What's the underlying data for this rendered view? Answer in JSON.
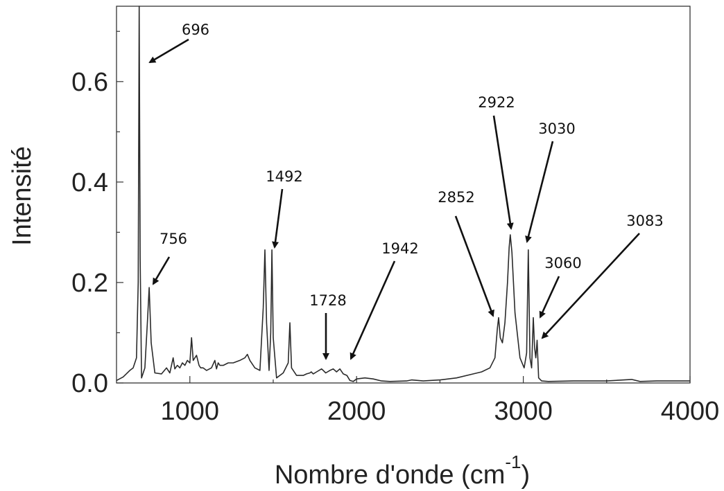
{
  "chart_data": {
    "type": "line",
    "title": "",
    "xlabel": "Nombre d'onde (cm",
    "xlabel_superscript": "-1",
    "xlabel_suffix": ")",
    "ylabel": "Intensité",
    "xlim": [
      560,
      4000
    ],
    "ylim": [
      0,
      0.75
    ],
    "x_ticks": [
      1000,
      2000,
      3000,
      4000
    ],
    "x_tick_labels": [
      "1000",
      "2000",
      "3000",
      "4000"
    ],
    "y_ticks": [
      0.0,
      0.2,
      0.4,
      0.6
    ],
    "y_tick_labels": [
      "0.0",
      "0.2",
      "0.4",
      "0.6"
    ],
    "grid": false,
    "line_color": "#2a2a2a",
    "series": [
      {
        "x": [
          560,
          600,
          640,
          660,
          680,
          690,
          696,
          702,
          710,
          730,
          745,
          756,
          768,
          790,
          830,
          860,
          880,
          900,
          910,
          925,
          940,
          955,
          970,
          985,
          1000,
          1010,
          1020,
          1030,
          1040,
          1055,
          1065,
          1080,
          1100,
          1130,
          1150,
          1160,
          1170,
          1180,
          1200,
          1230,
          1260,
          1300,
          1330,
          1345,
          1360,
          1390,
          1420,
          1440,
          1450,
          1460,
          1475,
          1485,
          1492,
          1500,
          1520,
          1560,
          1590,
          1600,
          1610,
          1640,
          1680,
          1700,
          1720,
          1728,
          1740,
          1760,
          1790,
          1800,
          1815,
          1840,
          1860,
          1880,
          1900,
          1920,
          1942,
          1960,
          1980,
          2000,
          2050,
          2100,
          2150,
          2200,
          2300,
          2330,
          2400,
          2500,
          2600,
          2700,
          2750,
          2800,
          2830,
          2845,
          2852,
          2862,
          2875,
          2890,
          2905,
          2915,
          2922,
          2932,
          2950,
          2980,
          3005,
          3020,
          3030,
          3040,
          3050,
          3060,
          3068,
          3075,
          3083,
          3092,
          3110,
          3150,
          3300,
          3500,
          3650,
          3700,
          3800,
          4000
        ],
        "values": [
          0.005,
          0.012,
          0.025,
          0.03,
          0.05,
          0.2,
          0.75,
          0.25,
          0.01,
          0.03,
          0.12,
          0.19,
          0.08,
          0.02,
          0.018,
          0.03,
          0.02,
          0.05,
          0.028,
          0.035,
          0.03,
          0.04,
          0.035,
          0.045,
          0.04,
          0.09,
          0.045,
          0.05,
          0.055,
          0.035,
          0.03,
          0.03,
          0.025,
          0.03,
          0.045,
          0.028,
          0.04,
          0.035,
          0.035,
          0.04,
          0.04,
          0.045,
          0.05,
          0.057,
          0.045,
          0.03,
          0.025,
          0.15,
          0.265,
          0.12,
          0.025,
          0.1,
          0.265,
          0.09,
          0.01,
          0.02,
          0.04,
          0.12,
          0.03,
          0.015,
          0.015,
          0.018,
          0.02,
          0.022,
          0.018,
          0.022,
          0.028,
          0.025,
          0.02,
          0.025,
          0.028,
          0.022,
          0.028,
          0.018,
          0.015,
          0.005,
          0.003,
          0.008,
          0.01,
          0.008,
          0.004,
          0.003,
          0.004,
          0.006,
          0.004,
          0.006,
          0.01,
          0.018,
          0.022,
          0.03,
          0.05,
          0.11,
          0.13,
          0.09,
          0.08,
          0.12,
          0.2,
          0.27,
          0.295,
          0.26,
          0.14,
          0.05,
          0.03,
          0.06,
          0.265,
          0.05,
          0.03,
          0.13,
          0.07,
          0.05,
          0.085,
          0.01,
          0.004,
          0.003,
          0.004,
          0.004,
          0.007,
          0.003,
          0.004,
          0.004
        ]
      }
    ],
    "annotations": [
      {
        "label": "696",
        "x": 696
      },
      {
        "label": "756",
        "x": 756
      },
      {
        "label": "1492",
        "x": 1492
      },
      {
        "label": "1728",
        "x": 1728
      },
      {
        "label": "1942",
        "x": 1942
      },
      {
        "label": "2852",
        "x": 2852
      },
      {
        "label": "2922",
        "x": 2922
      },
      {
        "label": "3030",
        "x": 3030
      },
      {
        "label": "3060",
        "x": 3060
      },
      {
        "label": "3083",
        "x": 3083
      }
    ]
  }
}
